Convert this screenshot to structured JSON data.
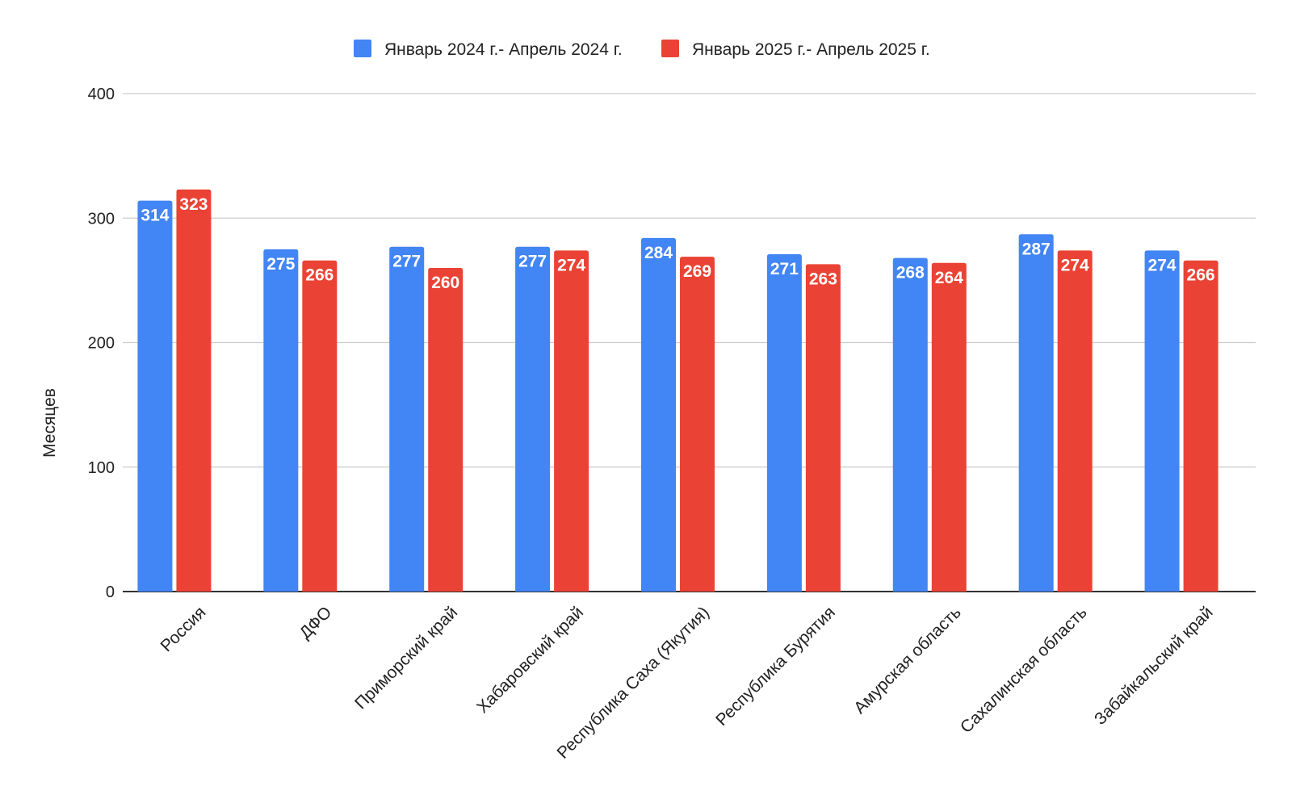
{
  "chart_data": {
    "type": "bar",
    "ylabel": "Месяцев",
    "ylim": [
      0,
      400
    ],
    "yticks": [
      0,
      100,
      200,
      300,
      400
    ],
    "grid": true,
    "legend_position": "top-center",
    "data_labels": true,
    "categories": [
      "Россия",
      "ДФО",
      "Приморский край",
      "Хабаровский край",
      "Республика Саха (Якутия)",
      "Республика Бурятия",
      "Амурская область",
      "Сахалинская область",
      "Забайкальский край"
    ],
    "series": [
      {
        "name": "Январь 2024 г.- Апрель 2024 г.",
        "color": "#4285F4",
        "values": [
          314,
          275,
          277,
          277,
          284,
          271,
          268,
          287,
          274
        ]
      },
      {
        "name": "Январь 2025 г.- Апрель 2025 г.",
        "color": "#EA4335",
        "values": [
          323,
          266,
          260,
          274,
          269,
          263,
          264,
          274,
          266
        ]
      }
    ]
  }
}
